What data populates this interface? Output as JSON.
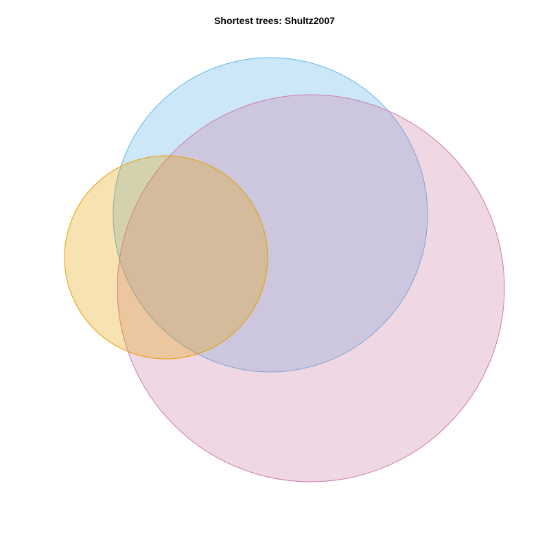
{
  "title": "Shortest trees: Shultz2007",
  "sets": [
    {
      "key": "blue",
      "fill": "#56B4E9",
      "stroke": "#56B4E9"
    },
    {
      "key": "pink",
      "fill": "#CC79A7",
      "stroke": "#CC79A7"
    },
    {
      "key": "orange",
      "fill": "#E69F00",
      "stroke": "#E69F00"
    }
  ]
}
